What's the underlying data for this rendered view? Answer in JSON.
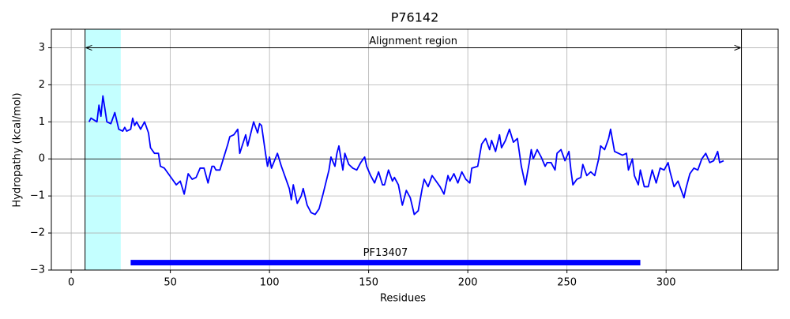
{
  "chart_data": {
    "type": "line",
    "title": "P76142",
    "xlabel": "Residues",
    "ylabel": "Hydropathy (kcal/mol)",
    "color": "#0000ff",
    "x": [
      9,
      10,
      13,
      14,
      15,
      16,
      18,
      20,
      22,
      24,
      26,
      27,
      28,
      30,
      31,
      32,
      33,
      35,
      37,
      39,
      40,
      42,
      44,
      45,
      47,
      49,
      51,
      53,
      55,
      57,
      59,
      61,
      63,
      65,
      67,
      69,
      71,
      72,
      73,
      75,
      77,
      79,
      80,
      82,
      84,
      85,
      88,
      89,
      92,
      94,
      95,
      96,
      98,
      99,
      100,
      101,
      104,
      106,
      108,
      110,
      111,
      112,
      114,
      116,
      117,
      119,
      121,
      123,
      125,
      127,
      130,
      131,
      133,
      134,
      135,
      137,
      138,
      140,
      142,
      144,
      146,
      148,
      149,
      151,
      153,
      155,
      157,
      158,
      160,
      162,
      163,
      165,
      167,
      169,
      171,
      173,
      175,
      177,
      178,
      180,
      182,
      184,
      186,
      188,
      190,
      191,
      193,
      195,
      197,
      199,
      201,
      202,
      205,
      207,
      209,
      211,
      212,
      214,
      216,
      217,
      219,
      221,
      223,
      225,
      227,
      229,
      231,
      232,
      233,
      235,
      237,
      239,
      240,
      242,
      244,
      245,
      247,
      249,
      251,
      252,
      253,
      255,
      257,
      258,
      260,
      262,
      264,
      266,
      267,
      269,
      271,
      272,
      274,
      276,
      278,
      280,
      281,
      283,
      284,
      286,
      287,
      289,
      291,
      293,
      295,
      297,
      299,
      301,
      302,
      304,
      306,
      309,
      310,
      312,
      314,
      316,
      318,
      320,
      322,
      324,
      326,
      327,
      329
    ],
    "values": [
      1.0,
      1.1,
      1.0,
      1.45,
      1.15,
      1.7,
      1.0,
      0.95,
      1.25,
      0.8,
      0.75,
      0.85,
      0.75,
      0.8,
      1.1,
      0.9,
      1.0,
      0.8,
      1.0,
      0.7,
      0.3,
      0.15,
      0.15,
      -0.2,
      -0.25,
      -0.4,
      -0.55,
      -0.7,
      -0.6,
      -0.95,
      -0.4,
      -0.55,
      -0.5,
      -0.25,
      -0.25,
      -0.65,
      -0.2,
      -0.2,
      -0.3,
      -0.3,
      0.05,
      0.4,
      0.6,
      0.65,
      0.8,
      0.15,
      0.65,
      0.35,
      1.0,
      0.7,
      0.95,
      0.9,
      0.15,
      -0.2,
      0.05,
      -0.25,
      0.15,
      -0.2,
      -0.5,
      -0.8,
      -1.1,
      -0.7,
      -1.2,
      -1.0,
      -0.8,
      -1.25,
      -1.45,
      -1.5,
      -1.35,
      -0.95,
      -0.3,
      0.05,
      -0.2,
      0.15,
      0.35,
      -0.3,
      0.15,
      -0.15,
      -0.25,
      -0.3,
      -0.1,
      0.05,
      -0.2,
      -0.45,
      -0.65,
      -0.35,
      -0.7,
      -0.7,
      -0.3,
      -0.6,
      -0.5,
      -0.7,
      -1.25,
      -0.85,
      -1.05,
      -1.5,
      -1.4,
      -0.8,
      -0.55,
      -0.75,
      -0.45,
      -0.6,
      -0.75,
      -0.95,
      -0.45,
      -0.6,
      -0.4,
      -0.65,
      -0.35,
      -0.55,
      -0.65,
      -0.25,
      -0.2,
      0.4,
      0.55,
      0.25,
      0.5,
      0.2,
      0.65,
      0.3,
      0.5,
      0.8,
      0.45,
      0.55,
      -0.2,
      -0.7,
      -0.1,
      0.25,
      0.0,
      0.25,
      0.05,
      -0.2,
      -0.1,
      -0.1,
      -0.3,
      0.15,
      0.25,
      -0.05,
      0.2,
      -0.3,
      -0.7,
      -0.55,
      -0.5,
      -0.15,
      -0.45,
      -0.35,
      -0.45,
      0.0,
      0.35,
      0.25,
      0.55,
      0.8,
      0.2,
      0.15,
      0.1,
      0.15,
      -0.3,
      0.0,
      -0.45,
      -0.7,
      -0.3,
      -0.75,
      -0.75,
      -0.3,
      -0.65,
      -0.25,
      -0.3,
      -0.1,
      -0.35,
      -0.75,
      -0.6,
      -1.05,
      -0.8,
      -0.4,
      -0.25,
      -0.3,
      0.0,
      0.15,
      -0.1,
      -0.05,
      0.2,
      -0.1,
      -0.05
    ],
    "xlim": [
      -10,
      356.5
    ],
    "ylim": [
      -3,
      3.5
    ],
    "xticks": [
      0,
      50,
      100,
      150,
      200,
      250,
      300
    ],
    "yticks": [
      {
        "value": -3,
        "label": "−3"
      },
      {
        "value": -2,
        "label": "−2"
      },
      {
        "value": -1,
        "label": "−1"
      },
      0,
      1,
      2,
      3
    ],
    "grid": true,
    "hline": 0,
    "highlight": {
      "x": [
        7,
        25
      ],
      "color": "#c4ffff"
    },
    "alignment_region": {
      "label": "Alignment region",
      "x": [
        7,
        338
      ],
      "y": 3
    },
    "domain": {
      "label": "PF13407",
      "x": [
        30,
        287
      ],
      "y": -2.8,
      "color": "#0000ff"
    }
  }
}
